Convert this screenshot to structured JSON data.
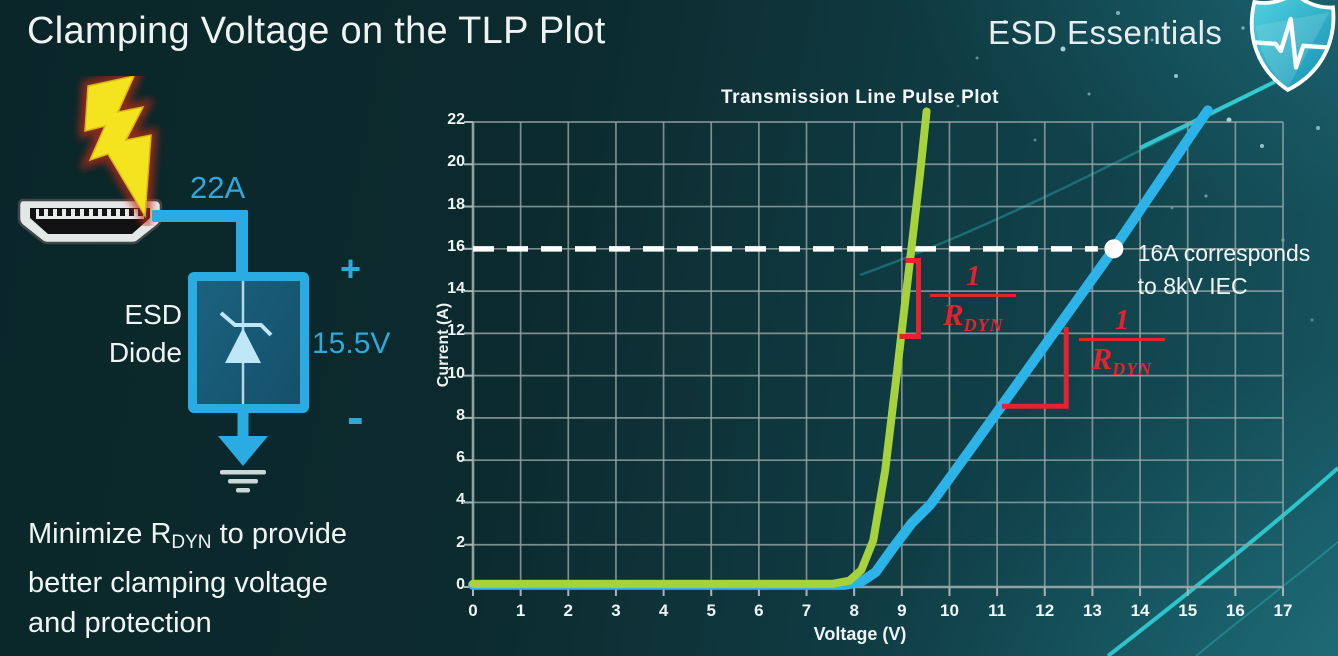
{
  "header": {
    "title": "Clamping Voltage on the TLP Plot",
    "brand": "ESD Essentials"
  },
  "diagram": {
    "surge_current": "22A",
    "device_line1": "ESD",
    "device_line2": "Diode",
    "clamp_voltage": "15.5V",
    "plus": "+",
    "minus": "-"
  },
  "note": {
    "pre": "Minimize R",
    "sub": "DYN",
    "post": " to provide",
    "line2": "better clamping voltage",
    "line3": "and protection"
  },
  "colors": {
    "accent_cyan": "#2aace2",
    "curve_green": "#a6d23d",
    "curve_blue": "#2cb4e8",
    "annotation_red": "#e8212e",
    "grid_gray": "#98a6a6",
    "background_dark": "#0b282c",
    "background_teal": "#17525c"
  },
  "chart_data": {
    "type": "line",
    "title": "Transmission Line Pulse Plot",
    "xlabel": "Voltage (V)",
    "ylabel": "Current (A)",
    "xlim": [
      0,
      17
    ],
    "ylim": [
      0,
      22
    ],
    "x_tick_step": 1,
    "y_tick_step": 2,
    "grid": true,
    "legend": "none",
    "series": [
      {
        "name": "blue-curve-higher-rdyn-diode",
        "color": "#2cb4e8",
        "width": 10,
        "points": [
          [
            0,
            0.1
          ],
          [
            7.8,
            0.1
          ],
          [
            8.15,
            0.25
          ],
          [
            8.45,
            0.7
          ],
          [
            8.8,
            1.8
          ],
          [
            9.2,
            3.0
          ],
          [
            9.6,
            3.9
          ],
          [
            10.5,
            6.7
          ],
          [
            13.45,
            16
          ],
          [
            15.42,
            22.55
          ]
        ]
      },
      {
        "name": "green-curve-low-rdyn-diode",
        "color": "#a6d23d",
        "width": 8,
        "points": [
          [
            0,
            0.15
          ],
          [
            7.55,
            0.15
          ],
          [
            7.9,
            0.3
          ],
          [
            8.15,
            0.8
          ],
          [
            8.4,
            2.2
          ],
          [
            8.65,
            5.5
          ],
          [
            8.9,
            10.2
          ],
          [
            9.2,
            16
          ],
          [
            9.38,
            19.5
          ],
          [
            9.52,
            22.5
          ]
        ]
      }
    ],
    "annotations": {
      "color": "#e8212e",
      "threshold_line": {
        "y": 16,
        "style": "dashed",
        "color": "#ffffff"
      },
      "marker_point": {
        "x": 13.45,
        "y": 16,
        "color": "#ffffff"
      },
      "marker_text": {
        "line1": "16A corresponds",
        "line2": "to 8kV IEC",
        "x": 13.95,
        "y": 16
      },
      "slope_bracket_green": {
        "x": 9.35,
        "y_top": 15.45,
        "y_bottom": 11.85
      },
      "slope_angle_blue": {
        "x_left": 11.1,
        "x_right": 12.45,
        "y_top": 12.3,
        "y_bottom": 8.55
      },
      "fractions": [
        {
          "numerator": "1",
          "den_base": "R",
          "den_sub": "DYN",
          "x": 10.5,
          "y_top": 15.4
        },
        {
          "numerator": "1",
          "den_base": "R",
          "den_sub": "DYN",
          "x": 13.62,
          "y_top": 13.3
        }
      ]
    }
  }
}
